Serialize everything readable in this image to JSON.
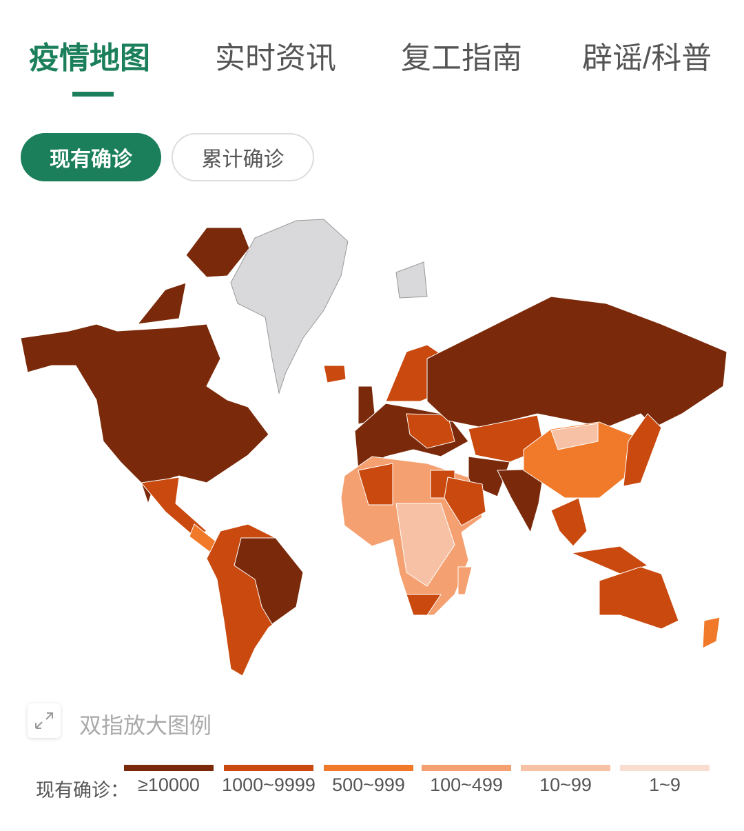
{
  "tabs": [
    {
      "label": "疫情地图",
      "active": true
    },
    {
      "label": "实时资讯"
    },
    {
      "label": "复工指南"
    },
    {
      "label": "辟谣/科普"
    }
  ],
  "toggle": [
    {
      "label": "现有确诊",
      "active": true
    },
    {
      "label": "累计确诊"
    }
  ],
  "map_hint": {
    "icon": "expand-icon",
    "text": "双指放大图例"
  },
  "legend": {
    "label": "现有确诊：",
    "items": [
      {
        "range": "≥10000",
        "color": "#7a2a0a"
      },
      {
        "range": "1000~9999",
        "color": "#c9490f"
      },
      {
        "range": "500~999",
        "color": "#f07a2a"
      },
      {
        "range": "100~499",
        "color": "#f4a070"
      },
      {
        "range": "10~99",
        "color": "#f7c1a5"
      },
      {
        "range": "1~9",
        "color": "#f9ddd0"
      }
    ],
    "no_data_color": "#d9d9dc"
  },
  "accent_color": "#1a7f5a"
}
